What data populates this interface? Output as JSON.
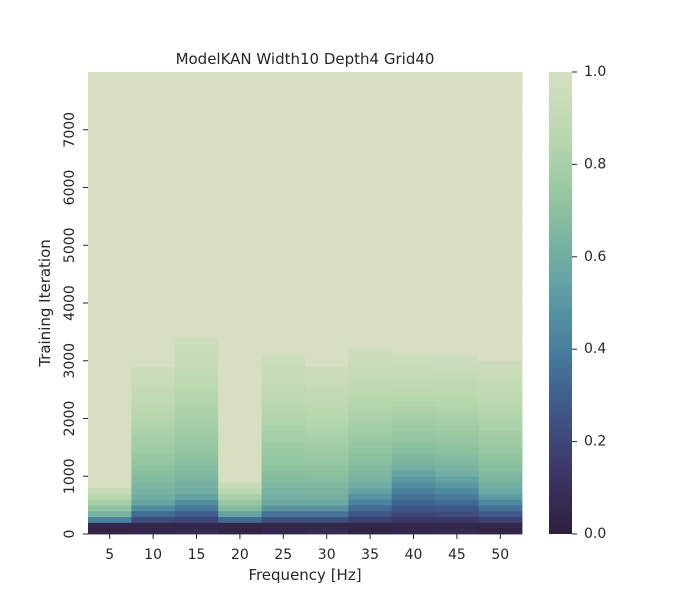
{
  "chart_data": {
    "type": "heatmap",
    "title": "ModelKAN Width10 Depth4 Grid40",
    "xlabel": "Frequency [Hz]",
    "ylabel": "Training Iteration",
    "x": [
      5,
      10,
      15,
      20,
      25,
      30,
      35,
      40,
      45,
      50
    ],
    "x_tick_labels": [
      "5",
      "10",
      "15",
      "20",
      "25",
      "30",
      "35",
      "40",
      "45",
      "50"
    ],
    "y_ticks": [
      0,
      1000,
      2000,
      3000,
      4000,
      5000,
      6000,
      7000
    ],
    "y_tick_labels": [
      "0",
      "1000",
      "2000",
      "3000",
      "4000",
      "5000",
      "6000",
      "7000"
    ],
    "ylim": [
      0,
      8000
    ],
    "y_row_step": 100,
    "value_range": [
      0,
      1
    ],
    "colorbar_ticks": [
      "0.0",
      "0.2",
      "0.4",
      "0.6",
      "0.8",
      "1.0"
    ],
    "colormap": "cubehelix-like (dark purple → teal → pale green)",
    "colormap_stops": [
      "#2e1e3b",
      "#3d3869",
      "#3e5c8d",
      "#4a86a0",
      "#6aa8a3",
      "#8fc49f",
      "#b9d8ae",
      "#d6dfc0"
    ],
    "convergence_iteration_per_frequency": [
      800,
      2900,
      3400,
      900,
      3100,
      2900,
      3200,
      3100,
      3100,
      3000
    ],
    "mid_level_iteration_per_frequency": [
      250,
      500,
      600,
      300,
      450,
      450,
      700,
      1000,
      900,
      650
    ]
  }
}
